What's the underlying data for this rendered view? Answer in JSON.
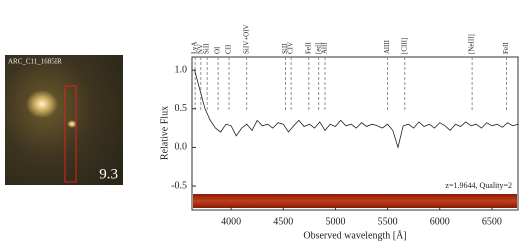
{
  "image": {
    "label": "ARC_C11_1685IR",
    "score": "9.3"
  },
  "chart_data": {
    "type": "line",
    "ylabel": "Relative Flux",
    "xlabel": "Observed wavelength [Å]",
    "annotation": "z=1.9644, Quality=2",
    "xlim": [
      3625,
      6750
    ],
    "ylim": [
      -0.81,
      1.17
    ],
    "xticks": [
      4000,
      4500,
      5000,
      5500,
      6000,
      6500
    ],
    "yticks": [
      {
        "value": 1,
        "label": "1.0"
      },
      0.5,
      {
        "value": 0,
        "label": "0.0"
      },
      -0.5
    ],
    "color": "#222222",
    "x": [
      3650,
      3700,
      3750,
      3800,
      3850,
      3900,
      3950,
      4000,
      4050,
      4100,
      4150,
      4200,
      4250,
      4300,
      4350,
      4400,
      4450,
      4500,
      4550,
      4600,
      4650,
      4700,
      4750,
      4800,
      4850,
      4900,
      4950,
      5000,
      5050,
      5100,
      5150,
      5200,
      5250,
      5300,
      5350,
      5400,
      5450,
      5500,
      5550,
      5600,
      5650,
      5700,
      5750,
      5800,
      5850,
      5900,
      5950,
      6000,
      6050,
      6100,
      6150,
      6200,
      6250,
      6300,
      6350,
      6400,
      6450,
      6500,
      6550,
      6600,
      6650,
      6700,
      6750
    ],
    "values": [
      1.0,
      0.75,
      0.5,
      0.35,
      0.25,
      0.2,
      0.3,
      0.28,
      0.15,
      0.25,
      0.3,
      0.22,
      0.35,
      0.28,
      0.3,
      0.25,
      0.32,
      0.3,
      0.2,
      0.28,
      0.35,
      0.27,
      0.3,
      0.25,
      0.33,
      0.22,
      0.3,
      0.27,
      0.35,
      0.28,
      0.3,
      0.25,
      0.32,
      0.27,
      0.3,
      0.28,
      0.25,
      0.3,
      0.22,
      0.0,
      0.28,
      0.3,
      0.25,
      0.33,
      0.27,
      0.3,
      0.25,
      0.32,
      0.28,
      0.22,
      0.3,
      0.27,
      0.33,
      0.28,
      0.3,
      0.25,
      0.32,
      0.28,
      0.3,
      0.26,
      0.32,
      0.28,
      0.3
    ],
    "lines": [
      {
        "label": "LyA",
        "wavelength": 3655
      },
      {
        "label": "NV",
        "wavelength": 3710
      },
      {
        "label": "SiII",
        "wavelength": 3770
      },
      {
        "label": "OI",
        "wavelength": 3875
      },
      {
        "label": "CII",
        "wavelength": 3980
      },
      {
        "label": "SiIV+OIV",
        "wavelength": 4150
      },
      {
        "label": "SiII",
        "wavelength": 4520
      },
      {
        "label": "CIV",
        "wavelength": 4575
      },
      {
        "label": "FeII",
        "wavelength": 4745
      },
      {
        "label": "[ed]",
        "wavelength": 4840
      },
      {
        "label": "AlII",
        "wavelength": 4900
      },
      {
        "label": "AlIII",
        "wavelength": 5500
      },
      {
        "label": "[CIII]",
        "wavelength": 5665
      },
      {
        "label": "[NeIII]",
        "wavelength": 6310
      },
      {
        "label": "FeII",
        "wavelength": 6640
      }
    ]
  }
}
